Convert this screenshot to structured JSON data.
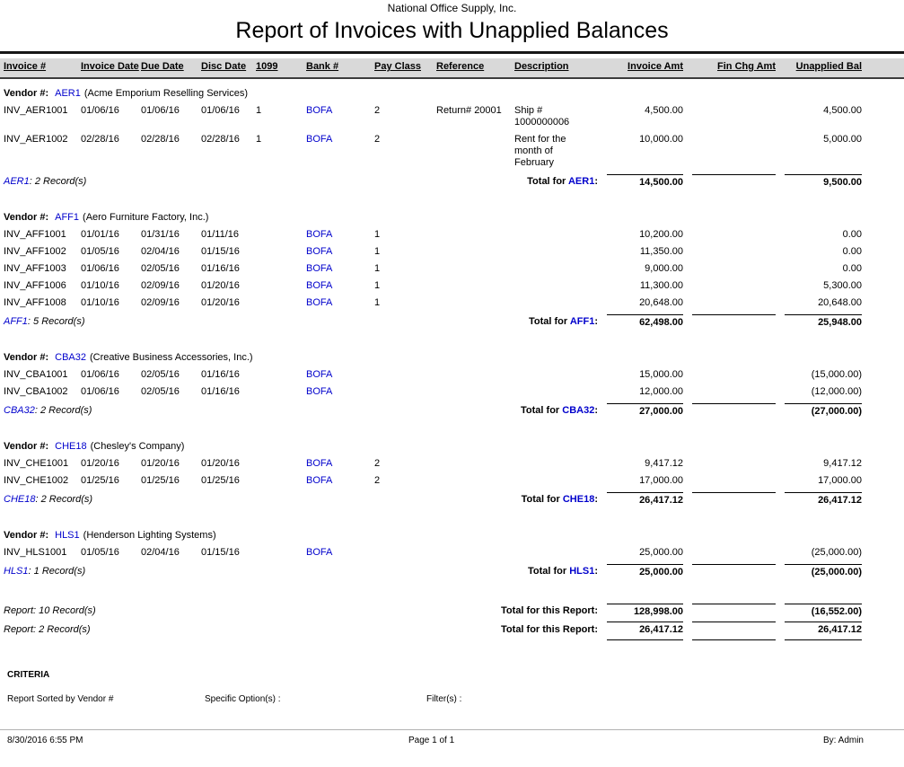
{
  "report": {
    "company": "National Office Supply, Inc.",
    "title": "Report of Invoices with Unapplied Balances",
    "columns": [
      "Invoice #",
      "Invoice Date",
      "Due Date",
      "Disc Date",
      "1099",
      "Bank #",
      "Pay Class",
      "Reference",
      "Description",
      "Invoice Amt",
      "Fin Chg Amt",
      "Unapplied Bal"
    ],
    "labels": {
      "vendor_prefix": "Vendor #:",
      "total_prefix": "Total for"
    },
    "colors": {
      "accent_blue": "#0000cc",
      "header_band": "#d9d9d9"
    },
    "vendors": [
      {
        "code": "AER1",
        "name": "(Acme Emporium Reselling Services)",
        "records": "2 Record(s)",
        "rows": [
          {
            "invoice": "INV_AER1001",
            "invoice_date": "01/06/16",
            "due_date": "01/06/16",
            "disc_date": "01/06/16",
            "f1099": "1",
            "bank": "BOFA",
            "pay_class": "2",
            "reference": "Return# 20001",
            "description": "Ship #\n1000000006",
            "invoice_amt": "4,500.00",
            "fin_chg": "",
            "unapplied": "4,500.00"
          },
          {
            "invoice": "INV_AER1002",
            "invoice_date": "02/28/16",
            "due_date": "02/28/16",
            "disc_date": "02/28/16",
            "f1099": "1",
            "bank": "BOFA",
            "pay_class": "2",
            "reference": "",
            "description": "Rent for the\nmonth of\nFebruary",
            "invoice_amt": "10,000.00",
            "fin_chg": "",
            "unapplied": "5,000.00"
          }
        ],
        "total": {
          "invoice_amt": "14,500.00",
          "fin_chg": "",
          "unapplied": "9,500.00"
        }
      },
      {
        "code": "AFF1",
        "name": "(Aero Furniture Factory, Inc.)",
        "records": "5 Record(s)",
        "rows": [
          {
            "invoice": "INV_AFF1001",
            "invoice_date": "01/01/16",
            "due_date": "01/31/16",
            "disc_date": "01/11/16",
            "f1099": "",
            "bank": "BOFA",
            "pay_class": "1",
            "reference": "",
            "description": "",
            "invoice_amt": "10,200.00",
            "fin_chg": "",
            "unapplied": "0.00"
          },
          {
            "invoice": "INV_AFF1002",
            "invoice_date": "01/05/16",
            "due_date": "02/04/16",
            "disc_date": "01/15/16",
            "f1099": "",
            "bank": "BOFA",
            "pay_class": "1",
            "reference": "",
            "description": "",
            "invoice_amt": "11,350.00",
            "fin_chg": "",
            "unapplied": "0.00"
          },
          {
            "invoice": "INV_AFF1003",
            "invoice_date": "01/06/16",
            "due_date": "02/05/16",
            "disc_date": "01/16/16",
            "f1099": "",
            "bank": "BOFA",
            "pay_class": "1",
            "reference": "",
            "description": "",
            "invoice_amt": "9,000.00",
            "fin_chg": "",
            "unapplied": "0.00"
          },
          {
            "invoice": "INV_AFF1006",
            "invoice_date": "01/10/16",
            "due_date": "02/09/16",
            "disc_date": "01/20/16",
            "f1099": "",
            "bank": "BOFA",
            "pay_class": "1",
            "reference": "",
            "description": "",
            "invoice_amt": "11,300.00",
            "fin_chg": "",
            "unapplied": "5,300.00"
          },
          {
            "invoice": "INV_AFF1008",
            "invoice_date": "01/10/16",
            "due_date": "02/09/16",
            "disc_date": "01/20/16",
            "f1099": "",
            "bank": "BOFA",
            "pay_class": "1",
            "reference": "",
            "description": "",
            "invoice_amt": "20,648.00",
            "fin_chg": "",
            "unapplied": "20,648.00"
          }
        ],
        "total": {
          "invoice_amt": "62,498.00",
          "fin_chg": "",
          "unapplied": "25,948.00"
        }
      },
      {
        "code": "CBA32",
        "name": "(Creative Business Accessories, Inc.)",
        "records": "2 Record(s)",
        "rows": [
          {
            "invoice": "INV_CBA1001",
            "invoice_date": "01/06/16",
            "due_date": "02/05/16",
            "disc_date": "01/16/16",
            "f1099": "",
            "bank": "BOFA",
            "pay_class": "",
            "reference": "",
            "description": "",
            "invoice_amt": "15,000.00",
            "fin_chg": "",
            "unapplied": "(15,000.00)"
          },
          {
            "invoice": "INV_CBA1002",
            "invoice_date": "01/06/16",
            "due_date": "02/05/16",
            "disc_date": "01/16/16",
            "f1099": "",
            "bank": "BOFA",
            "pay_class": "",
            "reference": "",
            "description": "",
            "invoice_amt": "12,000.00",
            "fin_chg": "",
            "unapplied": "(12,000.00)"
          }
        ],
        "total": {
          "invoice_amt": "27,000.00",
          "fin_chg": "",
          "unapplied": "(27,000.00)"
        }
      },
      {
        "code": "CHE18",
        "name": "(Chesley's Company)",
        "records": "2 Record(s)",
        "rows": [
          {
            "invoice": "INV_CHE1001",
            "invoice_date": "01/20/16",
            "due_date": "01/20/16",
            "disc_date": "01/20/16",
            "f1099": "",
            "bank": "BOFA",
            "pay_class": "2",
            "reference": "",
            "description": "",
            "invoice_amt": "9,417.12",
            "fin_chg": "",
            "unapplied": "9,417.12"
          },
          {
            "invoice": "INV_CHE1002",
            "invoice_date": "01/25/16",
            "due_date": "01/25/16",
            "disc_date": "01/25/16",
            "f1099": "",
            "bank": "BOFA",
            "pay_class": "2",
            "reference": "",
            "description": "",
            "invoice_amt": "17,000.00",
            "fin_chg": "",
            "unapplied": "17,000.00"
          }
        ],
        "total": {
          "invoice_amt": "26,417.12",
          "fin_chg": "",
          "unapplied": "26,417.12"
        }
      },
      {
        "code": "HLS1",
        "name": "(Henderson Lighting Systems)",
        "records": "1 Record(s)",
        "rows": [
          {
            "invoice": "INV_HLS1001",
            "invoice_date": "01/05/16",
            "due_date": "02/04/16",
            "disc_date": "01/15/16",
            "f1099": "",
            "bank": "BOFA",
            "pay_class": "",
            "reference": "",
            "description": "",
            "invoice_amt": "25,000.00",
            "fin_chg": "",
            "unapplied": "(25,000.00)"
          }
        ],
        "total": {
          "invoice_amt": "25,000.00",
          "fin_chg": "",
          "unapplied": "(25,000.00)"
        }
      }
    ],
    "report_totals": [
      {
        "records": "Report: 10 Record(s)",
        "label": "Total for this Report:",
        "invoice_amt": "128,998.00",
        "fin_chg": "",
        "unapplied": "(16,552.00)"
      },
      {
        "records": "Report: 2 Record(s)",
        "label": "Total for this Report:",
        "invoice_amt": "26,417.12",
        "fin_chg": "",
        "unapplied": "26,417.12"
      }
    ],
    "criteria": {
      "heading": "CRITERIA",
      "sorted_by": "Report Sorted by Vendor #",
      "specific_options": "Specific Option(s) :",
      "filters": "Filter(s) :"
    },
    "footer": {
      "datetime": "8/30/2016 6:55 PM",
      "page": "Page 1 of 1",
      "by": "By: Admin"
    }
  }
}
